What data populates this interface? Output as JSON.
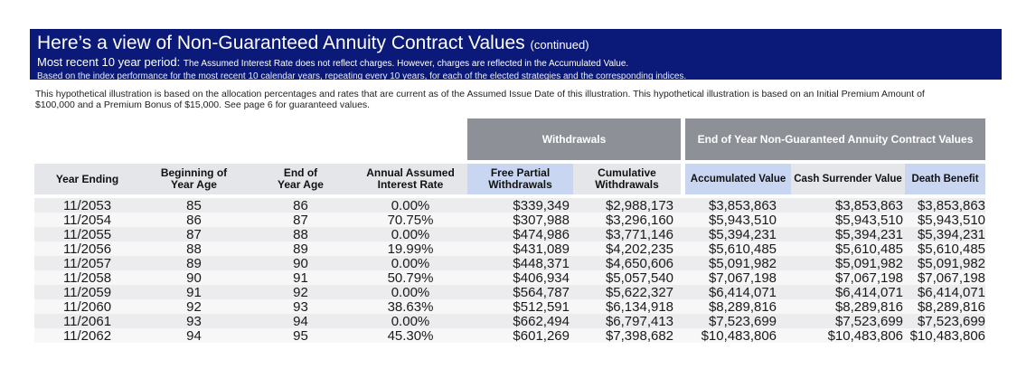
{
  "banner": {
    "title": "Here’s a view of Non-Guaranteed Annuity Contract Values",
    "title_suffix": "(continued)",
    "period_label": "Most recent 10 year period:",
    "period_note": "The Assumed Interest Rate does not reflect charges. However, charges are reflected in the Accumulated Value.",
    "basis_note": "Based on the  index performance for the most recent 10 calendar years, repeating every 10 years, for each of the elected strategies and the corresponding indices."
  },
  "intro": "This hypothetical illustration is based on the allocation percentages and rates that are current as of the Assumed Issue Date of this illustration. This hypothetical illustration is based on an Initial Premium Amount of $100,000 and a Premium Bonus of $15,000. See page 6 for guaranteed values.",
  "table": {
    "group_headers": {
      "withdrawals": "Withdrawals",
      "values": "End of Year Non-Guaranteed Annuity Contract Values"
    },
    "columns": [
      "Year Ending",
      "Beginning of Year Age",
      "End of Year Age",
      "Annual Assumed Interest Rate",
      "Free Partial Withdrawals",
      "Cumulative Withdrawals",
      "Accumulated Value",
      "Cash Surrender Value",
      "Death Benefit"
    ],
    "rows": [
      [
        "11/2053",
        "85",
        "86",
        "0.00%",
        "$339,349",
        "$2,988,173",
        "$3,853,863",
        "$3,853,863",
        "$3,853,863"
      ],
      [
        "11/2054",
        "86",
        "87",
        "70.75%",
        "$307,988",
        "$3,296,160",
        "$5,943,510",
        "$5,943,510",
        "$5,943,510"
      ],
      [
        "11/2055",
        "87",
        "88",
        "0.00%",
        "$474,986",
        "$3,771,146",
        "$5,394,231",
        "$5,394,231",
        "$5,394,231"
      ],
      [
        "11/2056",
        "88",
        "89",
        "19.99%",
        "$431,089",
        "$4,202,235",
        "$5,610,485",
        "$5,610,485",
        "$5,610,485"
      ],
      [
        "11/2057",
        "89",
        "90",
        "0.00%",
        "$448,371",
        "$4,650,606",
        "$5,091,982",
        "$5,091,982",
        "$5,091,982"
      ],
      [
        "11/2058",
        "90",
        "91",
        "50.79%",
        "$406,934",
        "$5,057,540",
        "$7,067,198",
        "$7,067,198",
        "$7,067,198"
      ],
      [
        "11/2059",
        "91",
        "92",
        "0.00%",
        "$564,787",
        "$5,622,327",
        "$6,414,071",
        "$6,414,071",
        "$6,414,071"
      ],
      [
        "11/2060",
        "92",
        "93",
        "38.63%",
        "$512,591",
        "$6,134,918",
        "$8,289,816",
        "$8,289,816",
        "$8,289,816"
      ],
      [
        "11/2061",
        "93",
        "94",
        "0.00%",
        "$662,494",
        "$6,797,413",
        "$7,523,699",
        "$7,523,699",
        "$7,523,699"
      ],
      [
        "11/2062",
        "94",
        "95",
        "45.30%",
        "$601,269",
        "$7,398,682",
        "$10,483,806",
        "$10,483,806",
        "$10,483,806"
      ]
    ]
  }
}
